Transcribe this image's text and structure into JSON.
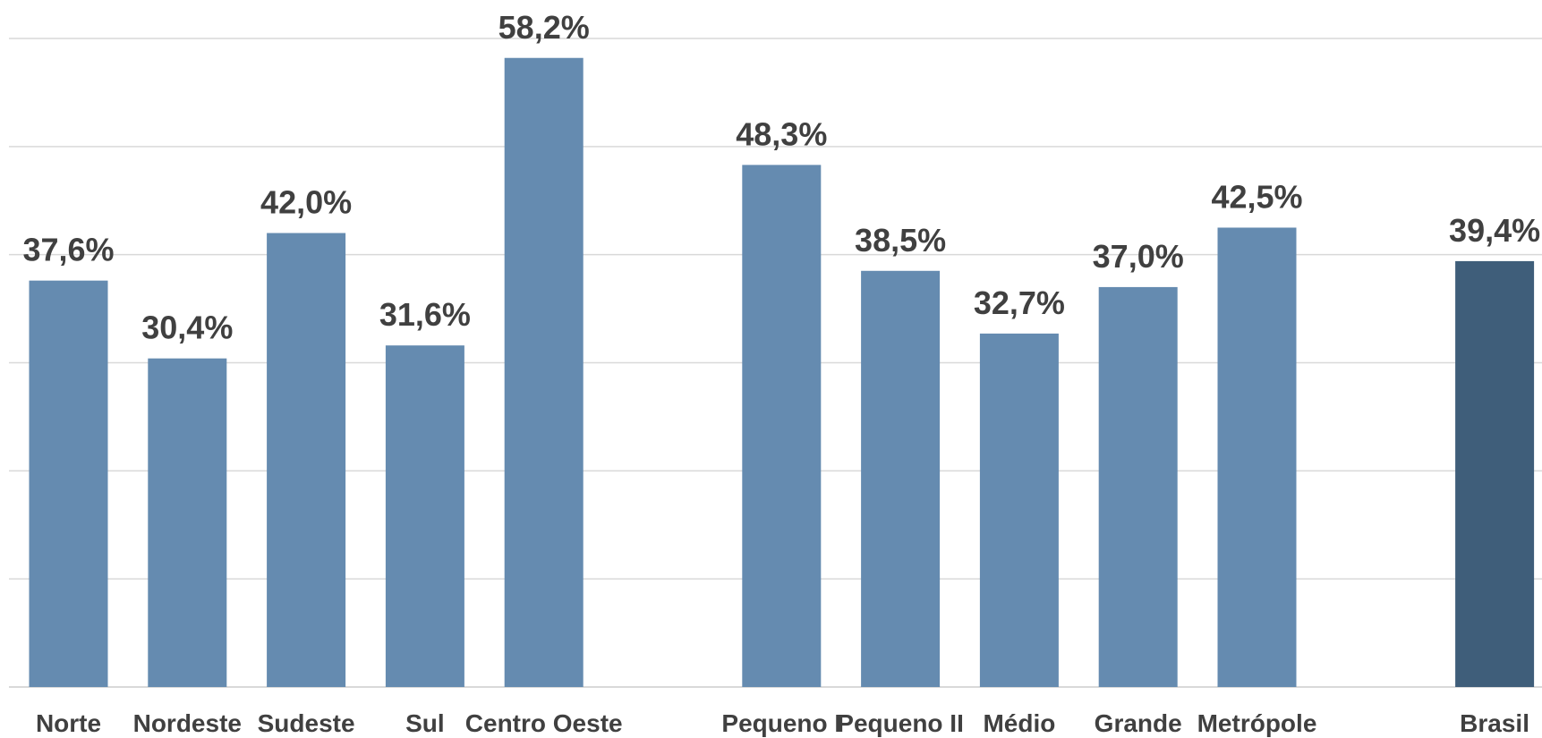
{
  "chart_data": {
    "type": "bar",
    "categories": [
      "Norte",
      "Nordeste",
      "Sudeste",
      "Sul",
      "Centro Oeste",
      "Pequeno I",
      "Pequeno II",
      "Médio",
      "Grande",
      "Metrópole",
      "Brasil"
    ],
    "values": [
      37.6,
      30.4,
      42.0,
      31.6,
      58.2,
      48.3,
      38.5,
      32.7,
      37.0,
      42.5,
      39.4
    ],
    "data_labels": [
      "37,6%",
      "30,4%",
      "42,0%",
      "31,6%",
      "58,2%",
      "48,3%",
      "38,5%",
      "32,7%",
      "37,0%",
      "42,5%",
      "39,4%"
    ],
    "groups": [
      {
        "categories": [
          "Norte",
          "Nordeste",
          "Sudeste",
          "Sul",
          "Centro Oeste"
        ]
      },
      {
        "categories": [
          "Pequeno I",
          "Pequeno II",
          "Médio",
          "Grande",
          "Metrópole"
        ]
      },
      {
        "categories": [
          "Brasil"
        ]
      }
    ],
    "ylim": [
      0,
      60
    ],
    "grid": true,
    "colors": {
      "bar": "#658BB0",
      "highlight": "#3F5E7A",
      "grid": "#D9D9D9",
      "text": "#404040"
    },
    "highlight_category": "Brasil",
    "title": "",
    "xlabel": "",
    "ylabel": ""
  }
}
